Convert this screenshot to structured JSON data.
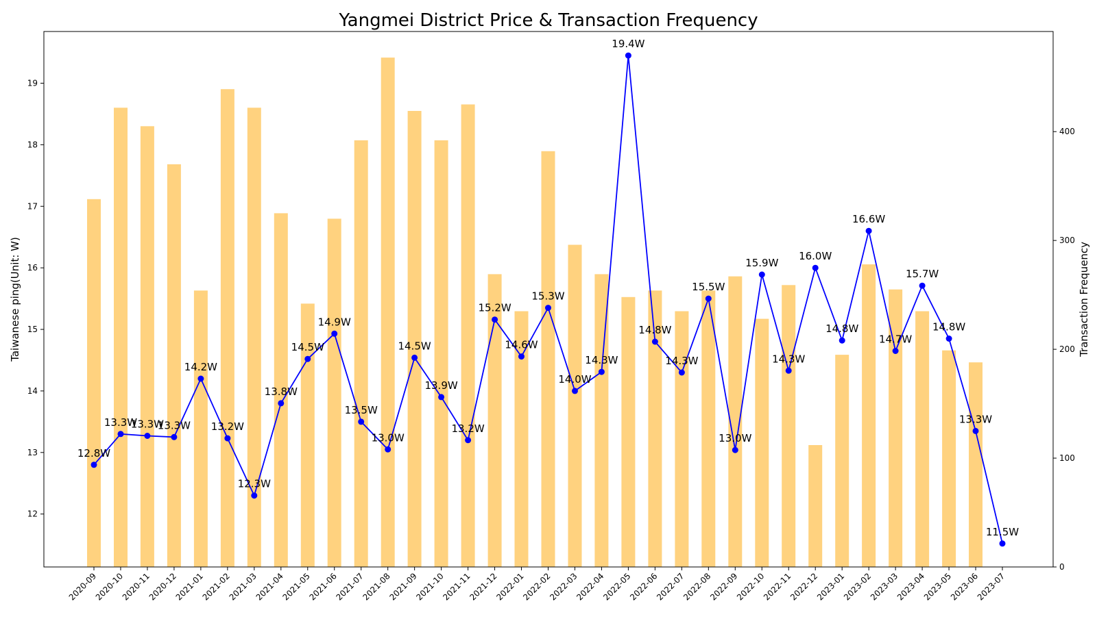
{
  "chart_data": {
    "type": "bar+line",
    "title": "Yangmei District Price & Transaction Frequency",
    "ylabel_left": "Taiwanese ping(Unit: W)",
    "ylabel_right": "Transaction Frequency",
    "xlabel": "",
    "categories": [
      "2020-09",
      "2020-10",
      "2020-11",
      "2020-12",
      "2021-01",
      "2021-02",
      "2021-03",
      "2021-04",
      "2021-05",
      "2021-06",
      "2021-07",
      "2021-08",
      "2021-09",
      "2021-10",
      "2021-11",
      "2021-12",
      "2022-01",
      "2022-02",
      "2022-03",
      "2022-04",
      "2022-05",
      "2022-06",
      "2022-07",
      "2022-08",
      "2022-09",
      "2022-10",
      "2022-11",
      "2022-12",
      "2023-01",
      "2023-02",
      "2023-03",
      "2023-04",
      "2023-05",
      "2023-06",
      "2023-07"
    ],
    "ylim_left": [
      11.14,
      19.84
    ],
    "ylim_right": [
      0,
      492
    ],
    "yticks_left": [
      "12",
      "13",
      "14",
      "15",
      "16",
      "17",
      "18",
      "19"
    ],
    "yticks_right": [
      "0",
      "100",
      "200",
      "300",
      "400"
    ],
    "bar_series": {
      "axis": "right",
      "color": "#FFA500",
      "opacity": 0.5,
      "values": [
        338,
        422,
        405,
        370,
        254,
        439,
        422,
        325,
        242,
        320,
        392,
        468,
        419,
        392,
        425,
        269,
        235,
        382,
        296,
        269,
        248,
        254,
        235,
        254,
        267,
        228,
        259,
        112,
        195,
        278,
        255,
        235,
        199,
        188,
        0
      ]
    },
    "line_series": {
      "axis": "left",
      "color": "#0000FF",
      "values": [
        12.8,
        13.3,
        13.27,
        13.25,
        14.2,
        13.23,
        12.3,
        13.8,
        14.52,
        14.93,
        13.5,
        13.05,
        14.54,
        13.9,
        13.2,
        15.16,
        14.56,
        15.35,
        14.0,
        14.31,
        19.45,
        14.8,
        14.3,
        15.5,
        13.04,
        15.89,
        14.33,
        16.0,
        14.82,
        16.6,
        14.65,
        15.71,
        14.85,
        13.35,
        11.52
      ],
      "labels": [
        "12.8W",
        "13.3W",
        "13.3W",
        "13.3W",
        "14.2W",
        "13.2W",
        "12.3W",
        "13.8W",
        "14.5W",
        "14.9W",
        "13.5W",
        "13.0W",
        "14.5W",
        "13.9W",
        "13.2W",
        "15.2W",
        "14.6W",
        "15.3W",
        "14.0W",
        "14.3W",
        "19.4W",
        "14.8W",
        "14.3W",
        "15.5W",
        "13.0W",
        "15.9W",
        "14.3W",
        "16.0W",
        "14.8W",
        "16.6W",
        "14.7W",
        "15.7W",
        "14.8W",
        "13.3W",
        "11.5W"
      ]
    }
  }
}
